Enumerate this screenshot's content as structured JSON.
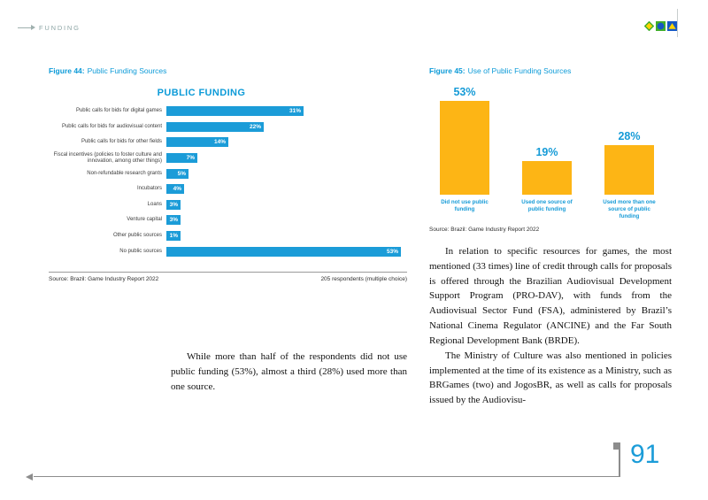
{
  "header": {
    "label": "FUNDING"
  },
  "logo": {
    "icons": [
      "diamond-icon",
      "circle-icon",
      "triangle-icon"
    ]
  },
  "chart_data": [
    {
      "type": "bar",
      "orientation": "horizontal",
      "figure_label": "Figure 44:",
      "figure_title": "Public Funding Sources",
      "title": "PUBLIC FUNDING",
      "categories": [
        "Public calls for bids for digital games",
        "Public calls for bids for audiovisual content",
        "Public calls for bids for other fields",
        "Fiscal incentives (policies to foster culture and innovation, among other things)",
        "Non-refundable research grants",
        "Incubators",
        "Loans",
        "Venture capital",
        "Other public sources",
        "No public sources"
      ],
      "values": [
        31,
        22,
        14,
        7,
        5,
        4,
        3,
        3,
        1,
        53
      ],
      "unit": "%",
      "xlim": [
        0,
        60
      ],
      "grid": false,
      "bar_color": "#1b9cd8",
      "source": "Source: Brazil: Game Industry Report 2022",
      "note": "205 respondents (multiple choice)"
    },
    {
      "type": "bar",
      "orientation": "vertical",
      "figure_label": "Figure 45:",
      "figure_title": "Use of Public Funding Sources",
      "categories": [
        "Did not use public funding",
        "Used one source of public funding",
        "Used more than one source of public funding"
      ],
      "values": [
        53,
        19,
        28
      ],
      "unit": "%",
      "ylim": [
        0,
        60
      ],
      "grid": false,
      "bar_color": "#fdb515",
      "source": "Source: Brazil: Game Industry Report 2022"
    }
  ],
  "body": {
    "mid_paragraph": "While more than half of the respondents did not use public funding (53%), almost a third (28%) used more than one source.",
    "right_paragraph_1": "In relation to specific resources for games, the most mentioned (33 times) line of credit through calls for proposals is offered through the Brazilian Audiovisual Development Support Program (PRO-DAV), with funds from the Audiovisual Sector Fund (FSA), administered by Brazil’s National Cinema Regulator (ANCINE) and the Far South Regional Development Bank (BRDE).",
    "right_paragraph_2": "The Ministry of Culture was also mentioned in policies implemented at the time of its existence as a Ministry, such as BRGames (two) and JogosBR, as well as calls for proposals issued by the Audiovisu-"
  },
  "footer": {
    "page_number": "91"
  },
  "colors": {
    "accent_blue": "#1b9cd8",
    "bar_orange": "#fdb515",
    "header_text": "#8ea6a6",
    "line_gray": "#8d8d8d"
  }
}
